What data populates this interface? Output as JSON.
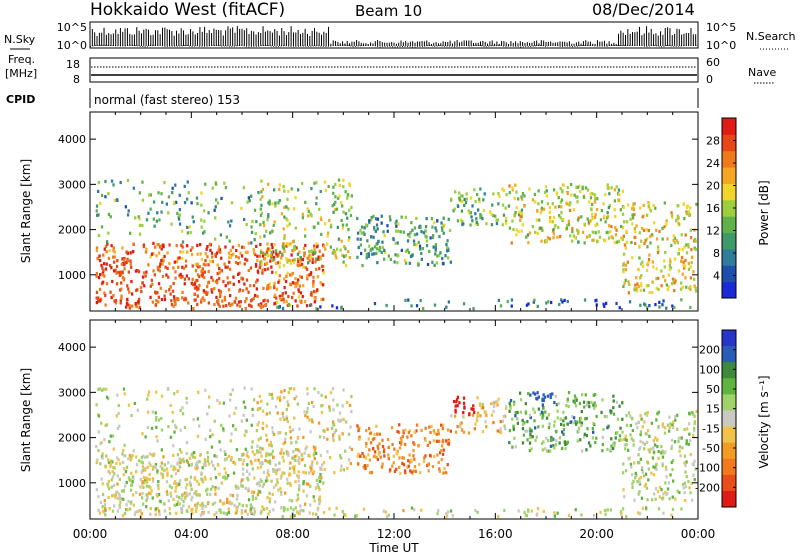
{
  "header": {
    "radar": "Hokkaido West (fitACF)",
    "beam": "Beam 10",
    "date": "08/Dec/2014"
  },
  "noise_panel": {
    "left_label": "N.Sky",
    "right_label": "N.Search",
    "ticks_left": [
      "10^5",
      "10^0"
    ],
    "ticks_right": [
      "10^5",
      "10^0"
    ]
  },
  "freq_panel": {
    "left_label_1": "Freq.",
    "left_label_2": "[MHz]",
    "ticks_left": [
      "18",
      "8"
    ],
    "right_label": "Nave",
    "ticks_right": [
      "60",
      "0"
    ]
  },
  "cpid": {
    "label": "CPID",
    "value": "normal (fast stereo) 153"
  },
  "colors": {
    "power_scale": [
      "#1a2bd6",
      "#1f4fae",
      "#2e7d9b",
      "#3f9a6a",
      "#5fb24a",
      "#9ccf3c",
      "#f2d52a",
      "#f5a623",
      "#f07a1a",
      "#e84818",
      "#e01b16"
    ],
    "velocity_scale": [
      "#2536c9",
      "#2a5db8",
      "#3f8a3a",
      "#5fb43f",
      "#9fd36a",
      "#c9c9c2",
      "#f0c24a",
      "#f39c25",
      "#f27a1c",
      "#e84d1a",
      "#e01b16"
    ]
  },
  "chart_data": [
    {
      "type": "heatmap",
      "title": "Power",
      "xlabel": "Time UT",
      "ylabel": "Slant Range [km]",
      "x_ticks": [
        "00:00",
        "04:00",
        "08:00",
        "12:00",
        "16:00",
        "20:00",
        "00:00"
      ],
      "y_ticks": [
        "1000",
        "2000",
        "3000",
        "4000"
      ],
      "ylim": [
        200,
        4600
      ],
      "xlim_hours": [
        0,
        24
      ],
      "colorbar": {
        "label": "Power [dB]",
        "ticks": [
          "4",
          "8",
          "12",
          "16",
          "20",
          "24",
          "28"
        ],
        "range": [
          0,
          32
        ]
      }
    },
    {
      "type": "heatmap",
      "title": "Velocity",
      "xlabel": "Time UT",
      "ylabel": "Slant Range [km]",
      "x_ticks": [
        "00:00",
        "04:00",
        "08:00",
        "12:00",
        "16:00",
        "20:00",
        "00:00"
      ],
      "y_ticks": [
        "1000",
        "2000",
        "3000",
        "4000"
      ],
      "ylim": [
        200,
        4600
      ],
      "xlim_hours": [
        0,
        24
      ],
      "colorbar": {
        "label": "Velocity [m s⁻¹]",
        "ticks": [
          "200",
          "100",
          "50",
          "15",
          "-15",
          "-50",
          "-100",
          "-200"
        ]
      }
    }
  ]
}
